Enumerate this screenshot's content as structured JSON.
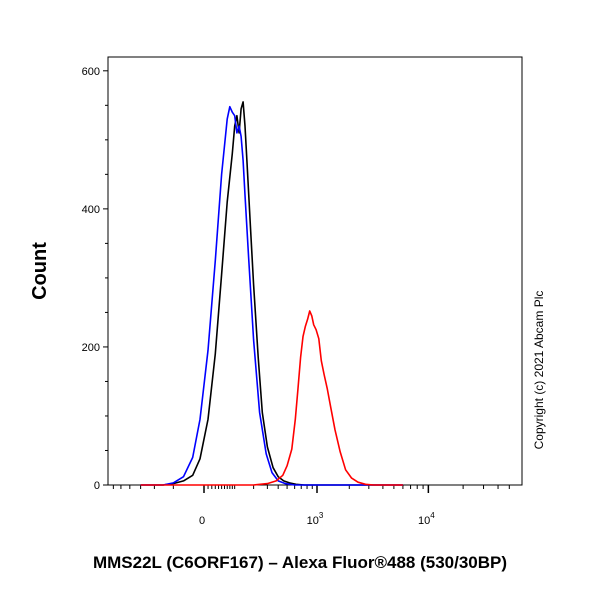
{
  "chart_data": {
    "type": "line",
    "xlabel": "MMS22L (C6ORF167) – Alexa Fluor®488 (530/30BP)",
    "ylabel": "Count",
    "copyright": "Copyright (c) 2021 Abcam Plc",
    "x_scale": "biexponential",
    "ylim": [
      0,
      620
    ],
    "y_ticks": [
      {
        "value": 0,
        "label": "0"
      },
      {
        "value": 200,
        "label": "200"
      },
      {
        "value": 400,
        "label": "400"
      },
      {
        "value": 600,
        "label": "600"
      }
    ],
    "x_ticks": [
      {
        "value": 0,
        "base": "0",
        "exp": ""
      },
      {
        "value": 1000,
        "base": "10",
        "exp": "3"
      },
      {
        "value": 10000,
        "base": "10",
        "exp": "4"
      }
    ],
    "grid": false,
    "series": [
      {
        "color": "#000000",
        "x": [
          -300,
          -150,
          -100,
          -60,
          -30,
          -10,
          10,
          30,
          50,
          70,
          90,
          100,
          110,
          120,
          130,
          140,
          150,
          160,
          180,
          200,
          230,
          260,
          300,
          350,
          400,
          460,
          530,
          620,
          750,
          900,
          1500,
          6000
        ],
        "values": [
          0,
          0,
          2,
          6,
          14,
          38,
          95,
          190,
          305,
          410,
          480,
          520,
          535,
          510,
          545,
          555,
          520,
          470,
          375,
          290,
          185,
          105,
          55,
          25,
          12,
          6,
          3,
          1,
          0,
          0,
          0,
          0
        ]
      },
      {
        "color": "#0000ff",
        "x": [
          -300,
          -150,
          -100,
          -60,
          -30,
          -10,
          10,
          30,
          50,
          70,
          80,
          90,
          100,
          110,
          120,
          130,
          140,
          150,
          170,
          200,
          240,
          290,
          340,
          400,
          480,
          600,
          1500,
          6000
        ],
        "values": [
          0,
          0,
          3,
          12,
          40,
          95,
          195,
          325,
          450,
          530,
          548,
          540,
          535,
          510,
          520,
          505,
          470,
          420,
          330,
          210,
          105,
          45,
          18,
          6,
          2,
          0,
          0,
          0
        ]
      },
      {
        "color": "#ff0000",
        "x": [
          -300,
          200,
          300,
          380,
          450,
          500,
          560,
          610,
          650,
          690,
          730,
          770,
          810,
          850,
          890,
          930,
          980,
          1040,
          1100,
          1170,
          1250,
          1350,
          1480,
          1650,
          1850,
          2100,
          2400,
          2800,
          3300,
          4000,
          6000
        ],
        "values": [
          0,
          0,
          2,
          6,
          14,
          28,
          52,
          95,
          140,
          185,
          215,
          230,
          240,
          252,
          245,
          232,
          225,
          212,
          180,
          160,
          140,
          112,
          80,
          48,
          22,
          10,
          4,
          1,
          0,
          0,
          0
        ]
      }
    ]
  }
}
